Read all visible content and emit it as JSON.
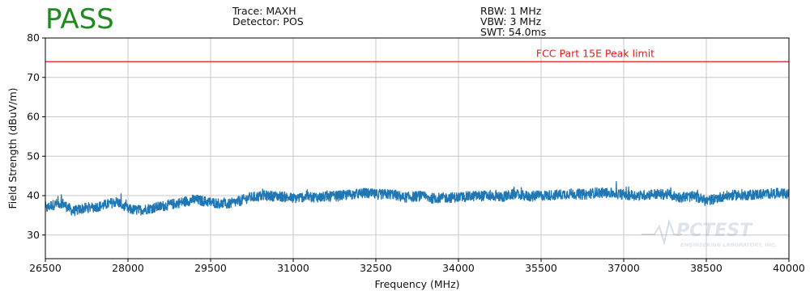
{
  "header": {
    "result": "PASS",
    "trace": "Trace: MAXH",
    "detector": "Detector: POS",
    "rbw": "RBW: 1 MHz",
    "vbw": "VBW: 3 MHz",
    "swt": "SWT: 54.0ms"
  },
  "colors": {
    "pass": "#1f8a1f",
    "trace": "#1f77b4",
    "limit": "#e31a1c",
    "grid": "#c8c8c8"
  },
  "watermark": {
    "name": "PCTEST",
    "sub": "ENGINEERING LABORATORY, INC."
  },
  "chart_data": {
    "type": "line",
    "xlabel": "Frequency (MHz)",
    "ylabel": "Field Strength (dBuV/m)",
    "xlim": [
      26500,
      40000
    ],
    "ylim": [
      24,
      80
    ],
    "xticks": [
      26500,
      28000,
      29500,
      31000,
      32500,
      34000,
      35500,
      37000,
      38500,
      40000
    ],
    "yticks": [
      30,
      40,
      50,
      60,
      70,
      80
    ],
    "grid": true,
    "limit": {
      "name": "FCC Part 15E Peak limit",
      "value": 74
    },
    "series": [
      {
        "x": [
          26500,
          26600,
          26800,
          27000,
          27200,
          27500,
          27800,
          28000,
          28200,
          28500,
          28800,
          29000,
          29200,
          29500,
          29800,
          30000,
          30200,
          30500,
          30800,
          31000,
          31200,
          31500,
          31800,
          32000,
          32300,
          32500,
          32800,
          33000,
          33300,
          33500,
          33800,
          34000,
          34300,
          34500,
          34800,
          35000,
          35300,
          35500,
          35800,
          36000,
          36300,
          36500,
          36800,
          37000,
          37300,
          37500,
          37800,
          38000,
          38300,
          38500,
          38800,
          39000,
          39300,
          39500,
          39800,
          40000
        ],
        "y": [
          36.5,
          37.5,
          38.2,
          36.0,
          36.8,
          37.3,
          38.5,
          36.5,
          36.3,
          37.0,
          37.8,
          38.4,
          39.0,
          38.3,
          37.8,
          38.5,
          39.5,
          40.0,
          39.8,
          39.3,
          39.7,
          39.6,
          39.9,
          40.2,
          40.6,
          40.3,
          40.4,
          39.5,
          39.9,
          39.3,
          39.5,
          39.6,
          39.9,
          40.0,
          39.7,
          40.3,
          39.8,
          40.0,
          40.2,
          40.5,
          40.3,
          40.8,
          40.6,
          40.3,
          40.0,
          40.4,
          40.3,
          39.6,
          39.8,
          38.6,
          39.8,
          40.1,
          40.2,
          40.4,
          40.6,
          40.3
        ]
      }
    ]
  }
}
